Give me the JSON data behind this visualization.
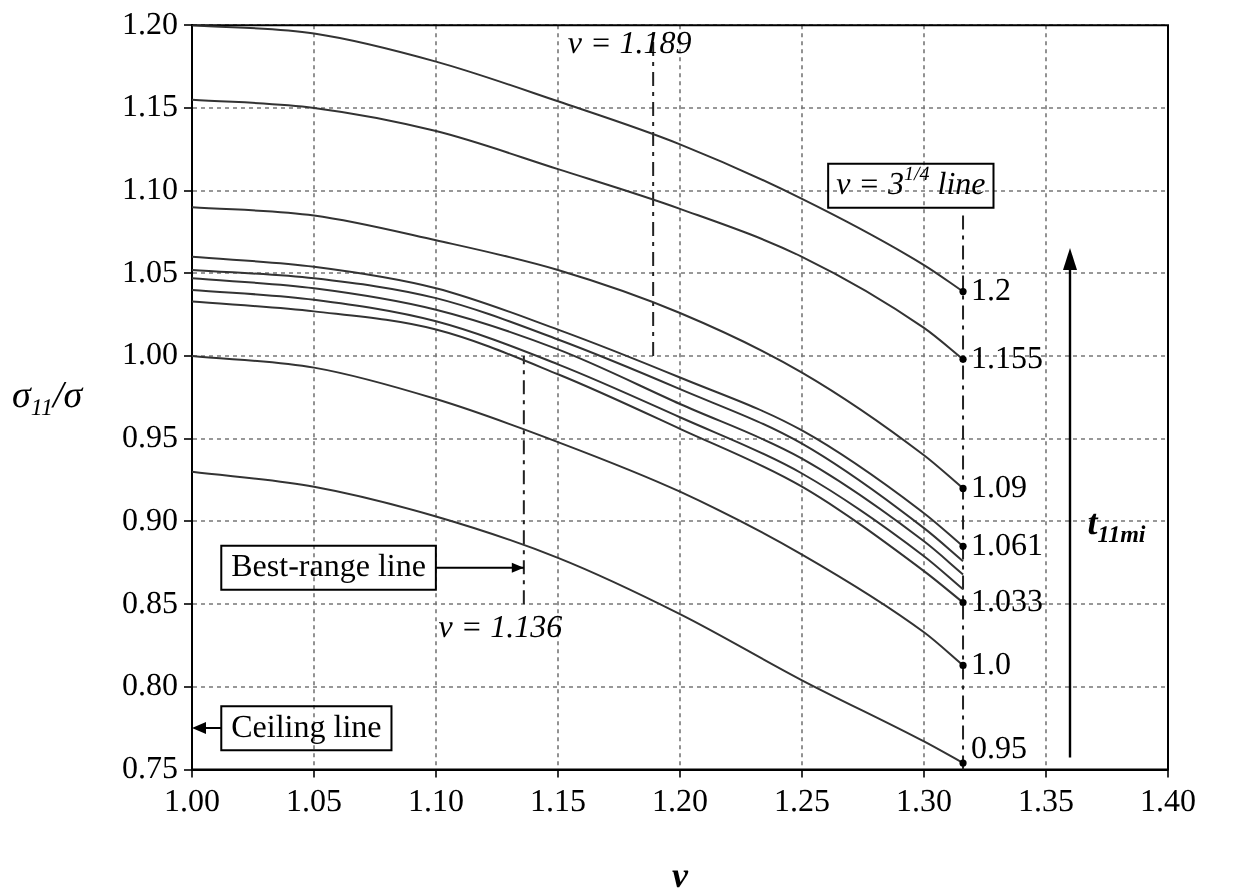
{
  "chart_data": {
    "type": "line",
    "xlabel": "v",
    "ylabel": "σ$_{11}$/σ",
    "x": [
      1.0,
      1.05,
      1.1,
      1.15,
      1.2,
      1.25,
      1.3,
      1.316
    ],
    "series": [
      {
        "name": "1.2",
        "color": "#333333",
        "values": [
          1.2,
          1.195,
          1.178,
          1.154,
          1.128,
          1.095,
          1.055,
          1.039
        ]
      },
      {
        "name": "1.155",
        "color": "#333333",
        "values": [
          1.155,
          1.15,
          1.136,
          1.113,
          1.089,
          1.06,
          1.017,
          0.998
        ]
      },
      {
        "name": "1.09",
        "color": "#333333",
        "values": [
          1.09,
          1.085,
          1.07,
          1.052,
          1.026,
          0.99,
          0.94,
          0.92
        ]
      },
      {
        "name": "1.061",
        "color": "#333333",
        "values": [
          1.06,
          1.054,
          1.041,
          1.016,
          0.987,
          0.955,
          0.905,
          0.885
        ]
      },
      {
        "color": "#333333",
        "values": [
          1.052,
          1.047,
          1.035,
          1.01,
          0.98,
          0.947,
          0.896,
          0.876
        ]
      },
      {
        "color": "#333333",
        "values": [
          1.047,
          1.041,
          1.028,
          1.004,
          0.971,
          0.938,
          0.888,
          0.868
        ]
      },
      {
        "color": "#333333",
        "values": [
          1.04,
          1.034,
          1.021,
          0.995,
          0.963,
          0.929,
          0.879,
          0.859
        ]
      },
      {
        "name": "1.033",
        "color": "#333333",
        "values": [
          1.033,
          1.027,
          1.016,
          0.989,
          0.956,
          0.921,
          0.87,
          0.851
        ]
      },
      {
        "name": "1.0",
        "color": "#333333",
        "values": [
          1.0,
          0.993,
          0.974,
          0.948,
          0.918,
          0.88,
          0.833,
          0.813
        ]
      },
      {
        "name": "0.95",
        "color": "#333333",
        "values": [
          0.93,
          0.921,
          0.903,
          0.878,
          0.844,
          0.804,
          0.767,
          0.754
        ]
      }
    ],
    "xlim": [
      1.0,
      1.4
    ],
    "xticks": [
      {
        "value": 1.0,
        "label": "1.00"
      },
      1.05,
      {
        "value": 1.1,
        "label": "1.10"
      },
      1.15,
      {
        "value": 1.2,
        "label": "1.20"
      },
      1.25,
      {
        "value": 1.3,
        "label": "1.30"
      },
      1.35,
      {
        "value": 1.4,
        "label": "1.40"
      }
    ],
    "ylim": [
      0.75,
      1.2
    ],
    "yticks": [
      0.75,
      {
        "value": 0.8,
        "label": "0.80"
      },
      0.85,
      {
        "value": 0.9,
        "label": "0.90"
      },
      0.95,
      {
        "value": 1.0,
        "label": "1.00"
      },
      1.05,
      {
        "value": 1.1,
        "label": "1.10"
      },
      1.15,
      {
        "value": 1.2,
        "label": "1.20"
      }
    ],
    "grid": true,
    "marker": "none",
    "ref_lines": [
      {
        "axis": "x",
        "value": 1.189,
        "label": "v = 1.189"
      },
      {
        "axis": "x",
        "value": 1.136,
        "label": "v = 1.136"
      },
      {
        "axis": "x",
        "value": 1.316,
        "label": "v = 3$^{1/4}$ line"
      }
    ],
    "annotations": [
      {
        "text": "Best-range line",
        "x": 1.136,
        "y": 0.872
      },
      "Ceiling line",
      "t$_{11mi}$"
    ]
  }
}
